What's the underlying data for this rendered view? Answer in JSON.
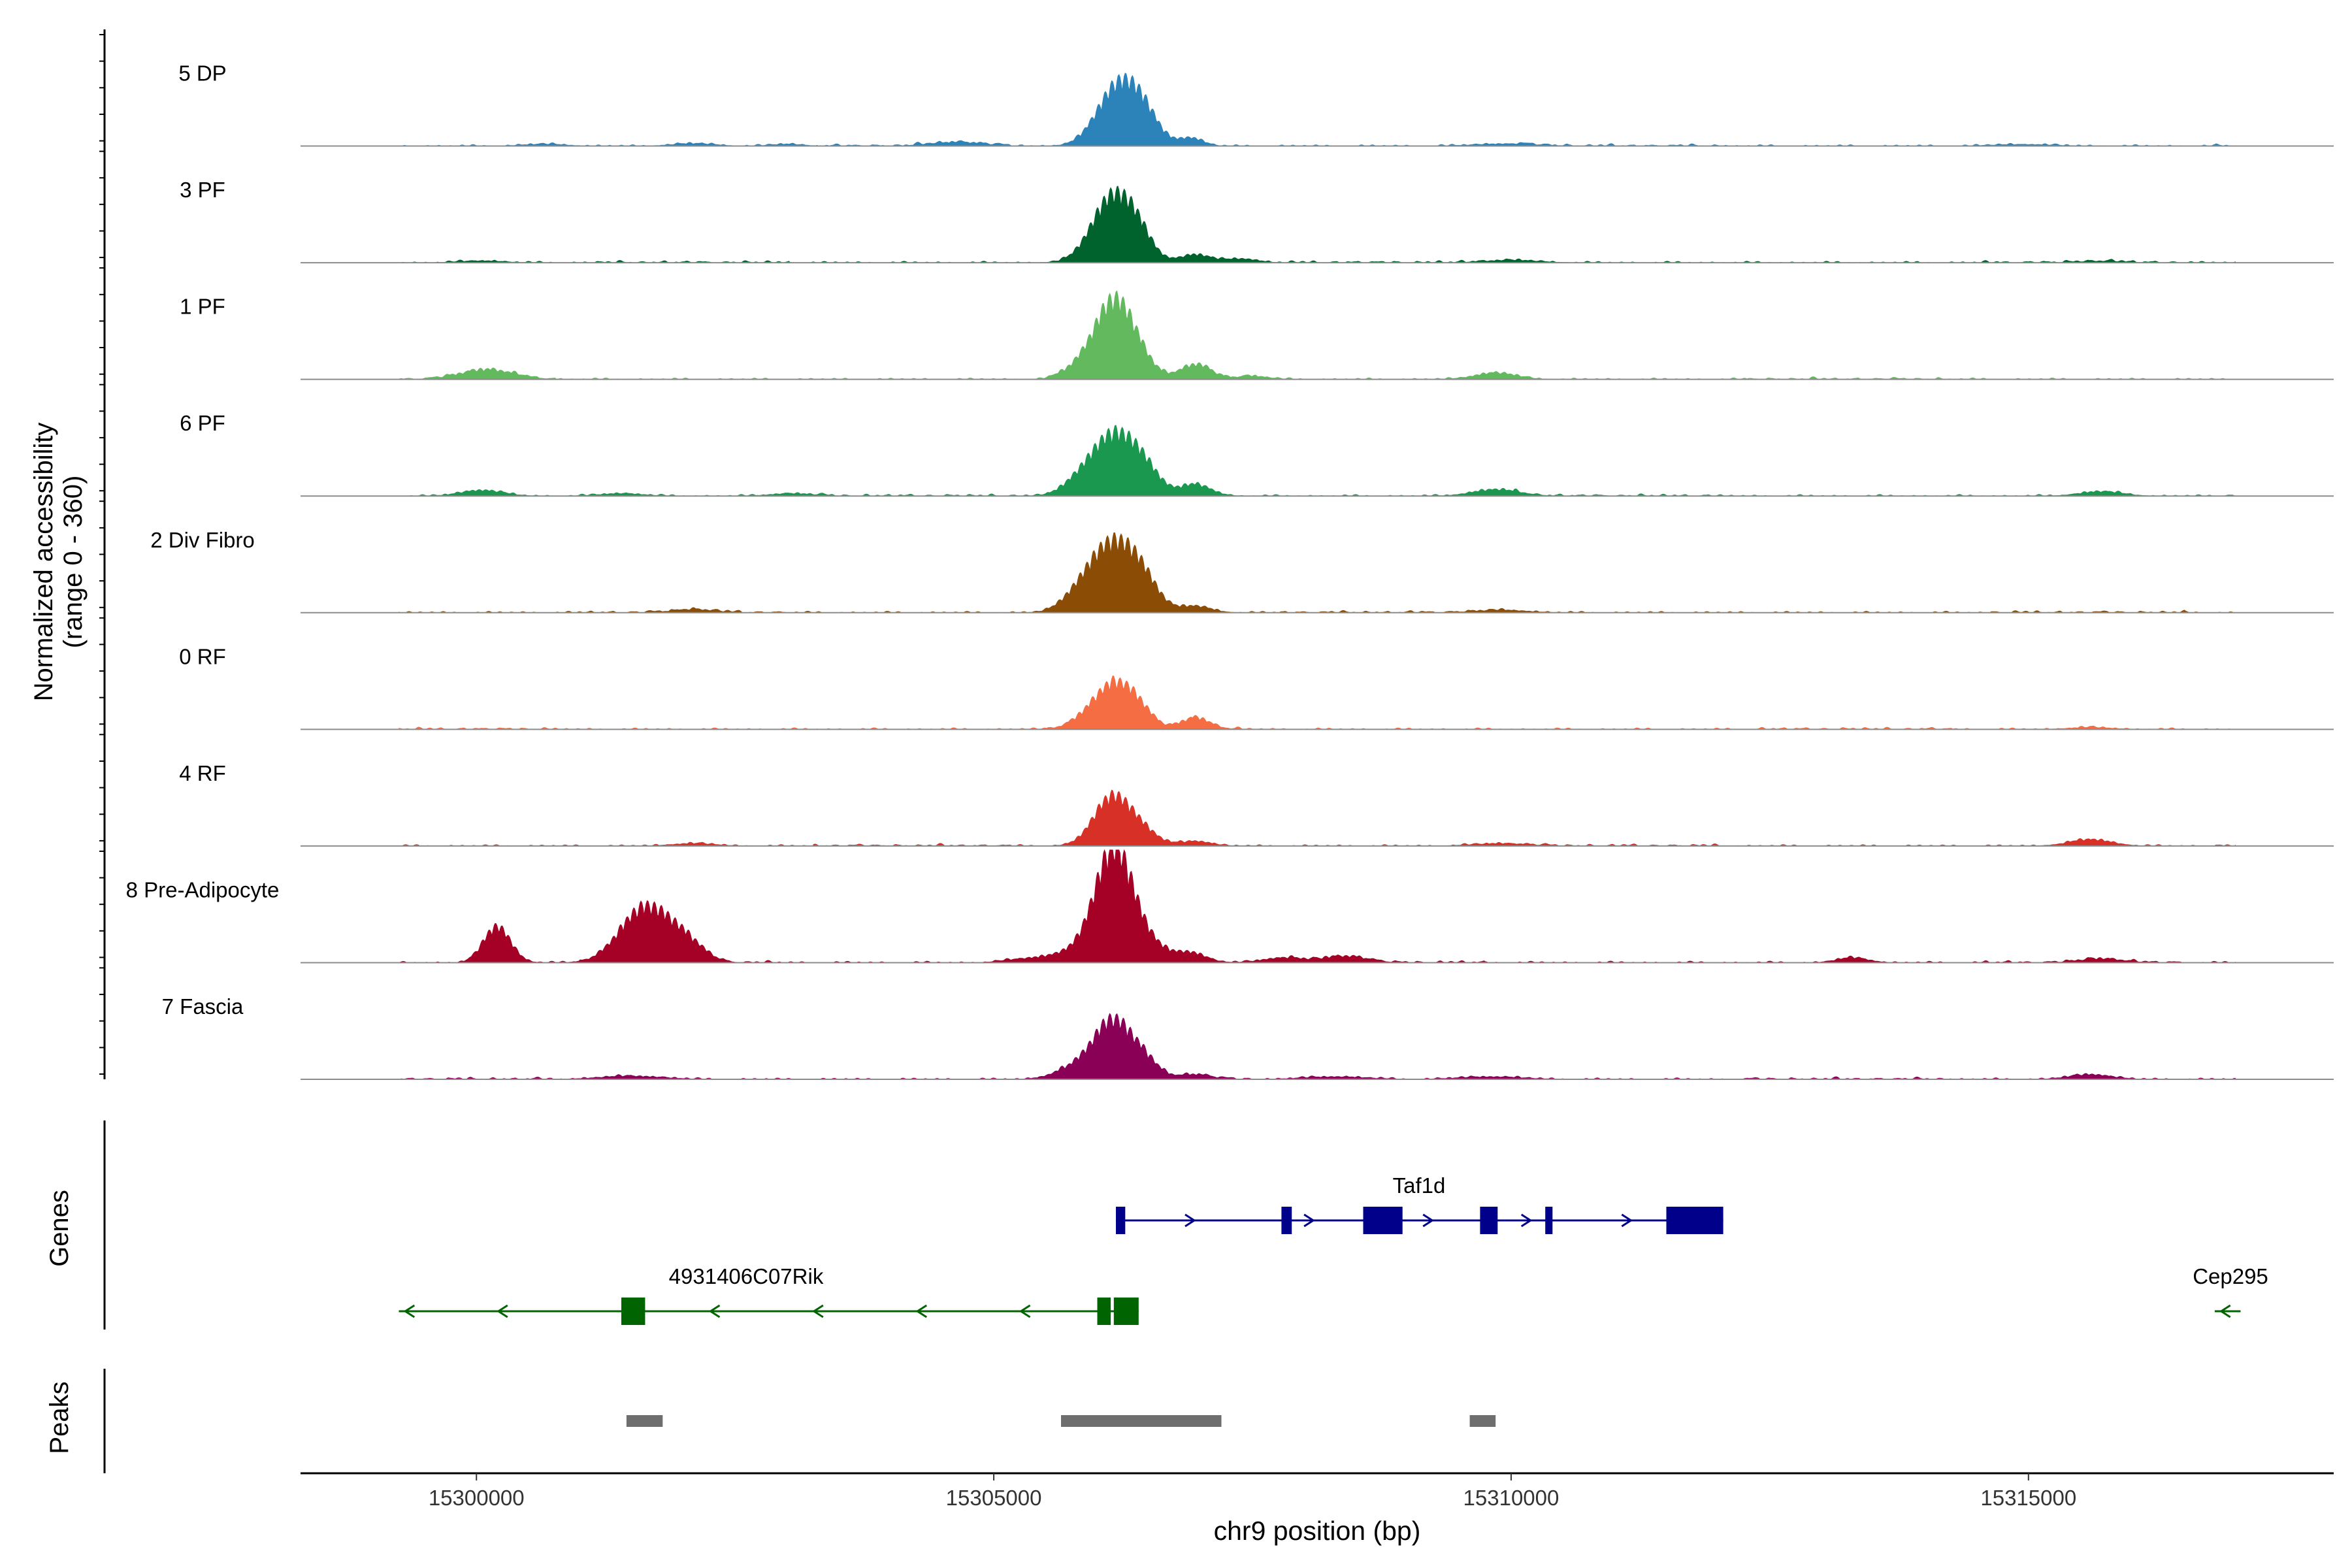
{
  "chart_data": {
    "type": "area",
    "title": "",
    "ylabel": "Normalized accessibility",
    "ylabel_range": "(range 0 - 360)",
    "y_range": [
      0,
      360
    ],
    "xlabel": "chr9 position (bp)",
    "xlim": [
      15298300,
      15317950
    ],
    "x_ticks": [
      15300000,
      15305000,
      15310000,
      15315000
    ],
    "x_tick_labels": [
      "15300000",
      "15305000",
      "15310000",
      "15315000"
    ],
    "coverage_x_range": [
      15299250,
      15317000
    ],
    "tracks": [
      {
        "name": "5 DP",
        "color": "#2b83ba",
        "peaks": [
          [
            15306200,
            180,
            200
          ],
          [
            15306450,
            70,
            150
          ],
          [
            15306900,
            25,
            120
          ],
          [
            15304650,
            12,
            250
          ],
          [
            15300650,
            6,
            200
          ],
          [
            15302100,
            8,
            200
          ],
          [
            15303000,
            6,
            150
          ],
          [
            15309950,
            7,
            300
          ],
          [
            15314950,
            5,
            300
          ]
        ]
      },
      {
        "name": "3 PF",
        "color": "#00632e",
        "peaks": [
          [
            15306150,
            200,
            200
          ],
          [
            15306400,
            55,
            140
          ],
          [
            15306950,
            25,
            150
          ],
          [
            15307400,
            12,
            150
          ],
          [
            15300050,
            6,
            200
          ],
          [
            15310000,
            8,
            250
          ],
          [
            15315700,
            5,
            200
          ]
        ]
      },
      {
        "name": "1 PF",
        "color": "#62b95e",
        "peaks": [
          [
            15306150,
            230,
            180
          ],
          [
            15306400,
            50,
            150
          ],
          [
            15306950,
            45,
            150
          ],
          [
            15300100,
            30,
            250
          ],
          [
            15309850,
            20,
            200
          ],
          [
            15305800,
            30,
            150
          ],
          [
            15307500,
            10,
            150
          ]
        ]
      },
      {
        "name": "6 PF",
        "color": "#1a9850",
        "peaks": [
          [
            15306150,
            180,
            220
          ],
          [
            15306450,
            60,
            160
          ],
          [
            15306950,
            35,
            150
          ],
          [
            15300050,
            18,
            200
          ],
          [
            15309850,
            20,
            220
          ],
          [
            15315700,
            14,
            200
          ],
          [
            15305800,
            25,
            160
          ],
          [
            15303050,
            8,
            200
          ],
          [
            15301400,
            8,
            200
          ]
        ]
      },
      {
        "name": "2 Div Fibro",
        "color": "#8b4c06",
        "peaks": [
          [
            15306150,
            210,
            230
          ],
          [
            15306450,
            60,
            150
          ],
          [
            15306950,
            20,
            150
          ],
          [
            15305800,
            30,
            160
          ],
          [
            15302100,
            10,
            200
          ],
          [
            15309900,
            8,
            250
          ]
        ]
      },
      {
        "name": "0 RF",
        "color": "#f46d43",
        "peaks": [
          [
            15306150,
            130,
            180
          ],
          [
            15306400,
            50,
            140
          ],
          [
            15306950,
            35,
            140
          ],
          [
            15305850,
            20,
            150
          ],
          [
            15315600,
            6,
            200
          ]
        ]
      },
      {
        "name": "4 RF",
        "color": "#d73027",
        "peaks": [
          [
            15306150,
            150,
            180
          ],
          [
            15306450,
            35,
            150
          ],
          [
            15306950,
            15,
            150
          ],
          [
            15315600,
            20,
            200
          ],
          [
            15302100,
            8,
            200
          ],
          [
            15309900,
            8,
            250
          ]
        ]
      },
      {
        "name": "8 Pre-Adipocyte",
        "color": "#a50026",
        "peaks": [
          [
            15306150,
            300,
            170
          ],
          [
            15306400,
            80,
            200
          ],
          [
            15300200,
            110,
            130
          ],
          [
            15301600,
            150,
            230
          ],
          [
            15301900,
            55,
            200
          ],
          [
            15302100,
            25,
            150
          ],
          [
            15305850,
            40,
            250
          ],
          [
            15306900,
            30,
            150
          ],
          [
            15307800,
            15,
            200
          ],
          [
            15308400,
            20,
            200
          ],
          [
            15313300,
            15,
            150
          ],
          [
            15315700,
            12,
            200
          ],
          [
            15305300,
            10,
            200
          ]
        ]
      },
      {
        "name": "7 Fascia",
        "color": "#8b0057",
        "peaks": [
          [
            15306150,
            170,
            180
          ],
          [
            15306450,
            50,
            150
          ],
          [
            15306950,
            15,
            150
          ],
          [
            15305800,
            35,
            200
          ],
          [
            15315600,
            15,
            200
          ],
          [
            15301500,
            10,
            300
          ],
          [
            15308300,
            8,
            300
          ],
          [
            15309800,
            8,
            300
          ]
        ]
      }
    ],
    "genes_panel_label": "Genes",
    "genes": [
      {
        "name": "Taf1d",
        "strand": "+",
        "color": "#00008b",
        "start": 15306180,
        "end": 15312050,
        "exons": [
          [
            15306180,
            15306270
          ],
          [
            15307780,
            15307880
          ],
          [
            15308570,
            15308950
          ],
          [
            15309700,
            15309870
          ],
          [
            15310330,
            15310400
          ],
          [
            15311500,
            15312050
          ]
        ],
        "strand_arrows": [
          15306900,
          15308050,
          15309200,
          15310150,
          15311120
        ]
      },
      {
        "name": "4931406C07Rik",
        "strand": "-",
        "color": "#006400",
        "start": 15299250,
        "end": 15306400,
        "exons": [
          [
            15301400,
            15301630
          ],
          [
            15306000,
            15306130
          ],
          [
            15306160,
            15306400
          ]
        ],
        "strand_arrows": [
          15299350,
          15300250,
          15302300,
          15303300,
          15304300,
          15305300
        ]
      },
      {
        "name": "Cep295",
        "strand": "-",
        "color": "#006400",
        "start": 15316800,
        "end": 15317050,
        "exons": [],
        "strand_arrows": [
          15316900
        ]
      }
    ],
    "peaks_panel_label": "Peaks",
    "peak_regions": [
      [
        15301450,
        15301800
      ],
      [
        15305650,
        15307200
      ],
      [
        15309600,
        15309850
      ]
    ],
    "peak_region_color": "#6e6e6e"
  }
}
